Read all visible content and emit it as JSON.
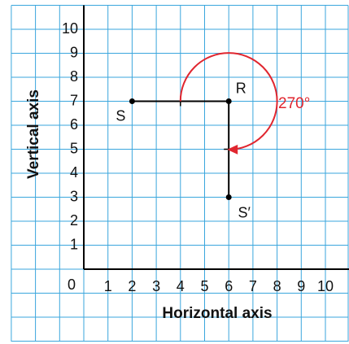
{
  "chart_data": {
    "type": "rotation",
    "xlabel": "Horizontal axis",
    "ylabel": "Vertical axis",
    "xlim": [
      0,
      11
    ],
    "ylim": [
      0,
      11
    ],
    "xticks": [
      0,
      1,
      2,
      3,
      4,
      5,
      6,
      7,
      8,
      9,
      10
    ],
    "yticks": [
      1,
      2,
      3,
      4,
      5,
      6,
      7,
      8,
      9,
      10
    ],
    "points": [
      {
        "label": "S",
        "x": 2,
        "y": 7
      },
      {
        "label": "R",
        "x": 6,
        "y": 7
      },
      {
        "label": "S′",
        "x": 6,
        "y": 3
      }
    ],
    "rotation": {
      "angle": 270,
      "label": "270°",
      "color": "#e0262f"
    },
    "grid": true,
    "grid_color": "#3aa6dd"
  }
}
